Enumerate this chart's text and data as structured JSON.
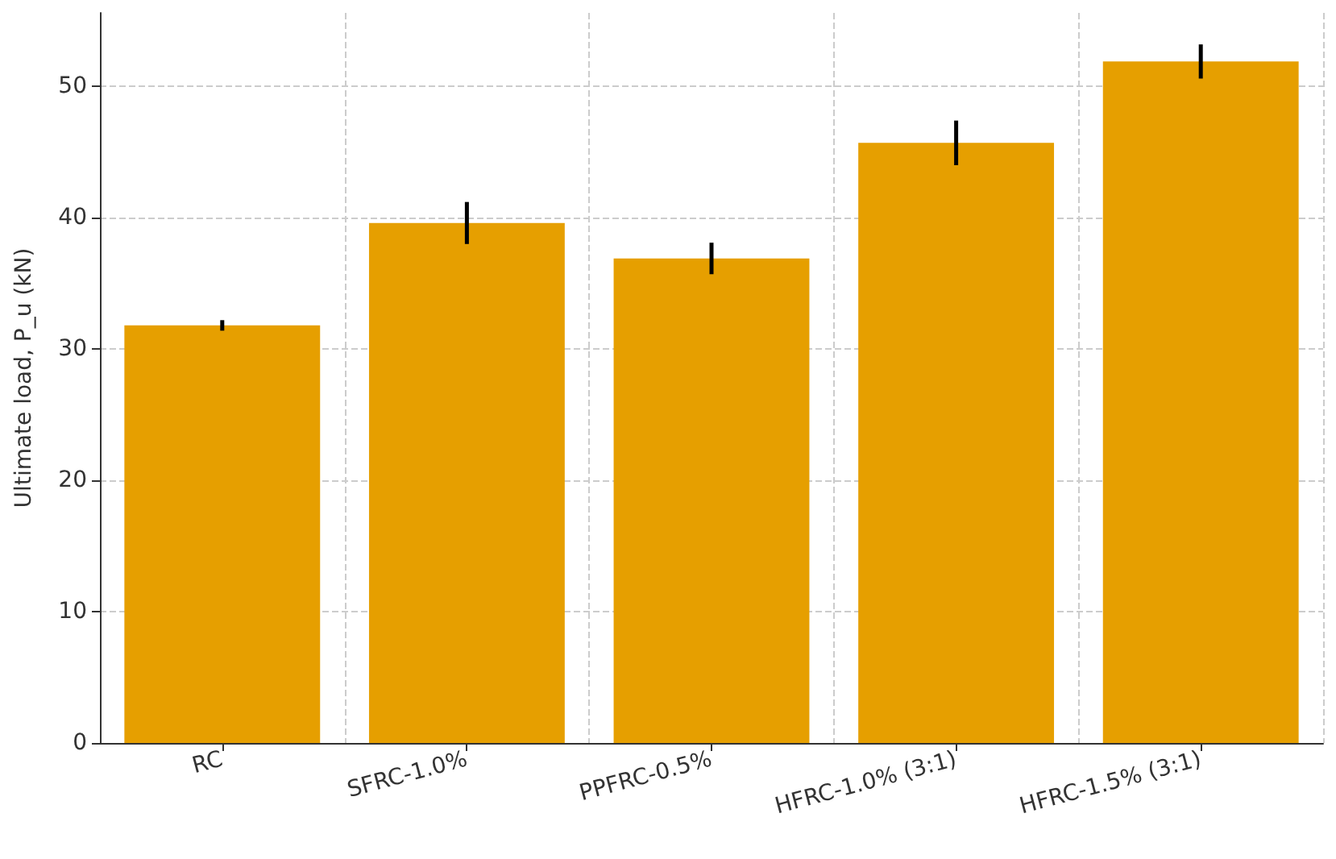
{
  "chart_data": {
    "type": "bar",
    "ylabel": "Ultimate load, P_u (kN)",
    "categories": [
      "RC",
      "SFRC-1.0%",
      "PPFRC-0.5%",
      "HFRC-1.0% (3:1)",
      "HFRC-1.5% (3:1)"
    ],
    "values": [
      31.8,
      39.6,
      36.9,
      45.7,
      51.9
    ],
    "errors": [
      0.4,
      1.6,
      1.2,
      1.7,
      1.3
    ],
    "color": "#e69f00",
    "ylim": [
      0,
      55.6
    ],
    "yticks": [
      0,
      10,
      20,
      30,
      40,
      50
    ],
    "grid": true
  }
}
